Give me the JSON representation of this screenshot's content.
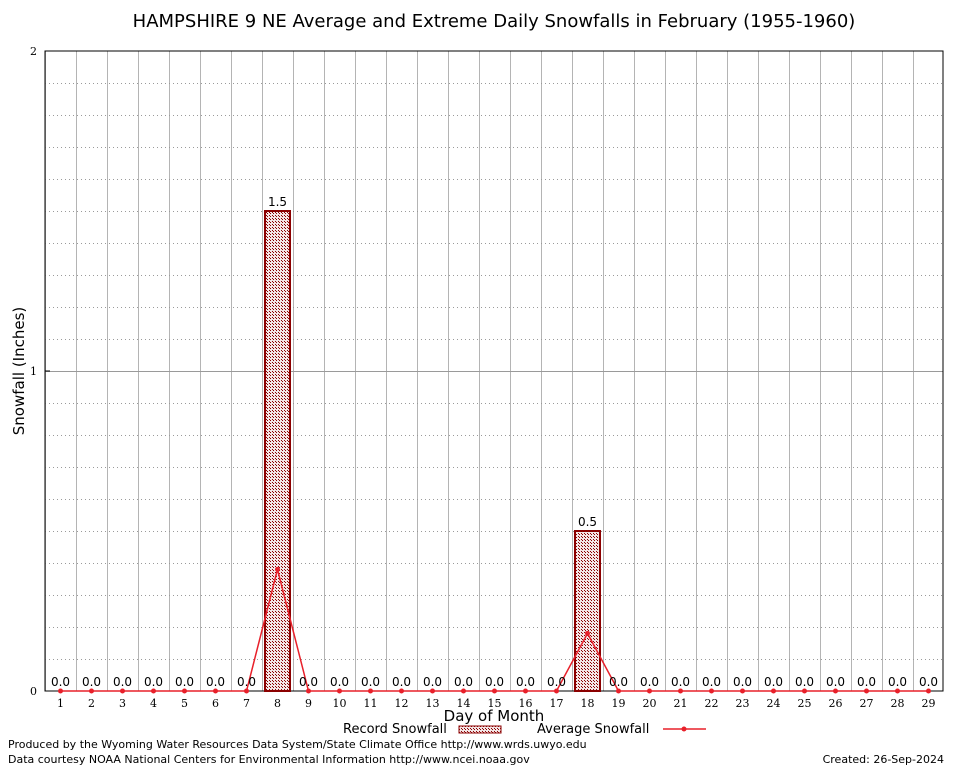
{
  "chart_data": {
    "type": "bar",
    "title": "HAMPSHIRE 9 NE Average and Extreme Daily Snowfalls in February (1955-1960)",
    "xlabel": "Day of Month",
    "ylabel": "Snowfall (Inches)",
    "ylim": [
      0,
      2
    ],
    "yticks": [
      "0",
      "1",
      "2"
    ],
    "categories": [
      "1",
      "2",
      "3",
      "4",
      "5",
      "6",
      "7",
      "8",
      "9",
      "10",
      "11",
      "12",
      "13",
      "14",
      "15",
      "16",
      "17",
      "18",
      "19",
      "20",
      "21",
      "22",
      "23",
      "24",
      "25",
      "26",
      "27",
      "28",
      "29"
    ],
    "grid": true,
    "legend_position": "bottom",
    "series": [
      {
        "name": "Record Snowfall",
        "type": "bar",
        "color": "#8b0000",
        "values": [
          0,
          0,
          0,
          0,
          0,
          0,
          0,
          1.5,
          0,
          0,
          0,
          0,
          0,
          0,
          0,
          0,
          0,
          0.5,
          0,
          0,
          0,
          0,
          0,
          0,
          0,
          0,
          0,
          0,
          0
        ],
        "labels": [
          "0.0",
          "0.0",
          "0.0",
          "0.0",
          "0.0",
          "0.0",
          "0.0",
          "1.5",
          "0.0",
          "0.0",
          "0.0",
          "0.0",
          "0.0",
          "0.0",
          "0.0",
          "0.0",
          "0.0",
          "0.5",
          "0.0",
          "0.0",
          "0.0",
          "0.0",
          "0.0",
          "0.0",
          "0.0",
          "0.0",
          "0.0",
          "0.0",
          "0.0"
        ]
      },
      {
        "name": "Average Snowfall",
        "type": "line",
        "color": "#e8202a",
        "values": [
          0,
          0,
          0,
          0,
          0,
          0,
          0,
          0.38,
          0,
          0,
          0,
          0,
          0,
          0,
          0,
          0,
          0,
          0.18,
          0,
          0,
          0,
          0,
          0,
          0,
          0,
          0,
          0,
          0,
          0
        ]
      }
    ]
  },
  "legend": {
    "record_label": "Record Snowfall",
    "average_label": "Average Snowfall"
  },
  "footer": {
    "line1": "Produced by the Wyoming Water Resources Data System/State Climate Office http://www.wrds.uwyo.edu",
    "line2": "Data courtesy NOAA National Centers for Environmental Information http://www.ncei.noaa.gov",
    "created": "Created:  26-Sep-2024"
  }
}
